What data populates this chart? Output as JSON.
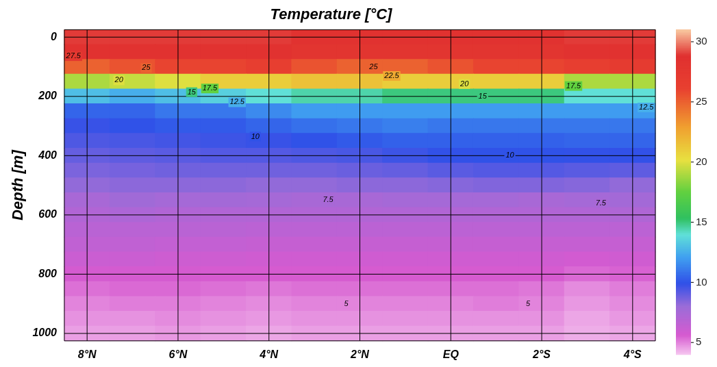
{
  "chart_data": {
    "type": "heatmap",
    "title": "Temperature [°C]",
    "ylabel": "Depth [m]",
    "categories": [
      "8°N",
      null,
      "6°N",
      null,
      "4°N",
      null,
      "2°N",
      null,
      "EQ",
      null,
      "2°S",
      null,
      "4°S"
    ],
    "y_categories": [
      "0",
      null,
      null,
      null,
      "200",
      null,
      null,
      null,
      "400",
      null,
      null,
      null,
      "600",
      null,
      null,
      null,
      "800",
      null,
      null,
      null,
      "1000"
    ],
    "cells": [
      [
        29,
        29,
        29,
        29,
        29,
        28.5,
        28.5,
        28.5,
        28.5,
        28.5,
        28.5,
        29,
        29
      ],
      [
        28.5,
        28.5,
        28.5,
        28.5,
        28.5,
        28,
        28,
        28,
        28,
        28,
        28,
        28.5,
        28.5
      ],
      [
        25,
        25.5,
        26,
        26,
        26.5,
        25.5,
        25,
        25,
        25.5,
        26,
        26,
        26.5,
        27
      ],
      [
        19,
        19.5,
        20,
        21,
        21,
        21.5,
        21.5,
        21,
        21,
        21,
        21,
        19,
        19
      ],
      [
        13,
        12.5,
        13,
        13.5,
        14,
        14.5,
        14.5,
        15,
        15,
        15,
        15,
        14,
        14
      ],
      [
        10.5,
        10.5,
        11,
        11,
        11.5,
        12,
        12,
        12,
        12,
        12,
        12,
        12,
        12
      ],
      [
        9.8,
        10,
        10.2,
        10.2,
        10.5,
        10.8,
        11,
        11.2,
        11,
        11,
        11,
        11,
        11
      ],
      [
        9.4,
        9.5,
        9.6,
        9.7,
        9.8,
        10,
        10.2,
        10.4,
        10.4,
        10.4,
        10.4,
        10.5,
        10.5
      ],
      [
        9,
        9.1,
        9.2,
        9.3,
        9.3,
        9.4,
        9.5,
        9.7,
        9.9,
        10,
        10,
        9.9,
        9.9
      ],
      [
        8.6,
        8.7,
        8.8,
        8.8,
        8.8,
        8.8,
        8.9,
        9,
        9.2,
        9.3,
        9.3,
        9.2,
        9.1
      ],
      [
        8.2,
        8.3,
        8.3,
        8.3,
        8.2,
        8.2,
        8.3,
        8.3,
        8.4,
        8.5,
        8.5,
        8.4,
        8.2
      ],
      [
        7.5,
        7.8,
        7.6,
        7.7,
        7.6,
        7.5,
        7.5,
        7.6,
        7.6,
        7.6,
        7.5,
        7.6,
        7.7
      ],
      [
        7.1,
        7.3,
        7.1,
        7.1,
        7.1,
        7.1,
        7.1,
        7.1,
        7.1,
        7.1,
        7.1,
        7.1,
        7.2
      ],
      [
        6.8,
        6.8,
        6.8,
        6.8,
        6.7,
        6.7,
        6.7,
        6.7,
        6.7,
        6.7,
        6.7,
        6.7,
        6.7
      ],
      [
        6.5,
        6.5,
        6.4,
        6.4,
        6.3,
        6.3,
        6.3,
        6.3,
        6.3,
        6.3,
        6.3,
        6.3,
        6.3
      ],
      [
        6.1,
        6.1,
        6,
        6,
        5.9,
        5.9,
        5.9,
        5.9,
        5.9,
        5.9,
        5.9,
        5.8,
        5.9
      ],
      [
        5.7,
        5.7,
        5.7,
        5.6,
        5.6,
        5.6,
        5.6,
        5.6,
        5.6,
        5.6,
        5.6,
        5.4,
        5.5
      ],
      [
        5.3,
        5.4,
        5.4,
        5.3,
        5.2,
        5.3,
        5.3,
        5.3,
        5.3,
        5.3,
        5.2,
        4.9,
        5.1
      ],
      [
        5,
        5.1,
        5.1,
        5,
        4.9,
        5,
        5,
        5,
        5,
        5.1,
        5,
        4.7,
        4.9
      ],
      [
        4.8,
        4.8,
        4.9,
        4.8,
        4.7,
        4.8,
        4.8,
        4.8,
        4.8,
        4.8,
        4.8,
        4.5,
        4.7
      ],
      [
        4.6,
        4.6,
        4.7,
        4.6,
        4.5,
        4.6,
        4.6,
        4.6,
        4.6,
        4.6,
        4.6,
        4.4,
        4.5
      ]
    ],
    "clim": [
      4,
      31
    ],
    "cticks": [
      5,
      10,
      15,
      20,
      25,
      30
    ],
    "grid": true,
    "annotations": [
      "27.5",
      "25",
      "20",
      "15",
      "17.5",
      "12.5",
      "10",
      "7.5",
      "5",
      "25",
      "22.5",
      "20",
      "15",
      "10",
      "5",
      "7.5",
      "17.5",
      "12.5"
    ]
  }
}
